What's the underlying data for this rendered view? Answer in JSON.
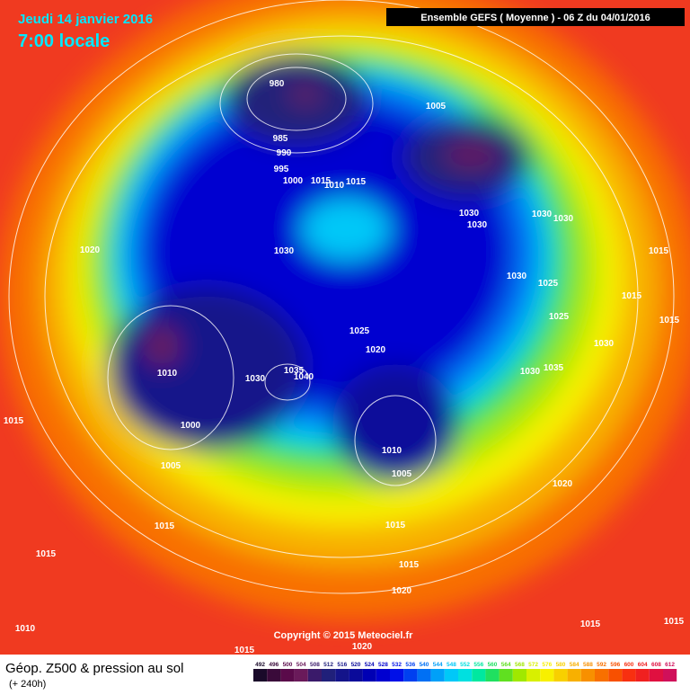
{
  "header": {
    "date": "Jeudi 14 janvier 2016",
    "time": "7:00 locale",
    "run": "Ensemble GEFS  ( Moyenne )  -  06 Z du 04/01/2016"
  },
  "copyright": "Copyright © 2015 Meteociel.fr",
  "footer": {
    "title": "Géop. Z500 & pression au sol",
    "subtitle": "(+ 240h)"
  },
  "isobar_labels": [
    "980",
    "1005",
    "985",
    "990",
    "995",
    "1000",
    "1015",
    "1010",
    "1015",
    "1030",
    "1030",
    "1030",
    "1030",
    "1020",
    "1030",
    "1015",
    "1030",
    "1025",
    "1015",
    "1015",
    "1025",
    "1030",
    "1025",
    "1020",
    "1010",
    "1035",
    "1030",
    "1040",
    "1030",
    "1035",
    "1015",
    "1000",
    "1010",
    "1005",
    "1005",
    "1020",
    "1015",
    "1015",
    "1015",
    "1015",
    "1020",
    "1015",
    "1015",
    "1010",
    "1020",
    "1015"
  ],
  "legend": {
    "values": [
      492,
      496,
      500,
      504,
      508,
      512,
      516,
      520,
      524,
      528,
      532,
      536,
      540,
      544,
      548,
      552,
      556,
      560,
      564,
      568,
      572,
      576,
      580,
      584,
      588,
      592,
      596,
      600,
      604,
      608,
      612
    ],
    "colors": [
      "#1a0a2a",
      "#3a0a3a",
      "#5a0a4a",
      "#6a1a5a",
      "#3a1a6a",
      "#20207a",
      "#14148a",
      "#0a0a9a",
      "#0000b4",
      "#0000d0",
      "#0010e8",
      "#0040f0",
      "#0070f4",
      "#00a0f8",
      "#00c8f8",
      "#00e0e0",
      "#00e8a0",
      "#20e060",
      "#60e020",
      "#a0e800",
      "#d8f000",
      "#f8f000",
      "#f8d000",
      "#f8b000",
      "#f89000",
      "#f87000",
      "#f85000",
      "#f83010",
      "#f02020",
      "#e01040",
      "#d0105a"
    ]
  }
}
